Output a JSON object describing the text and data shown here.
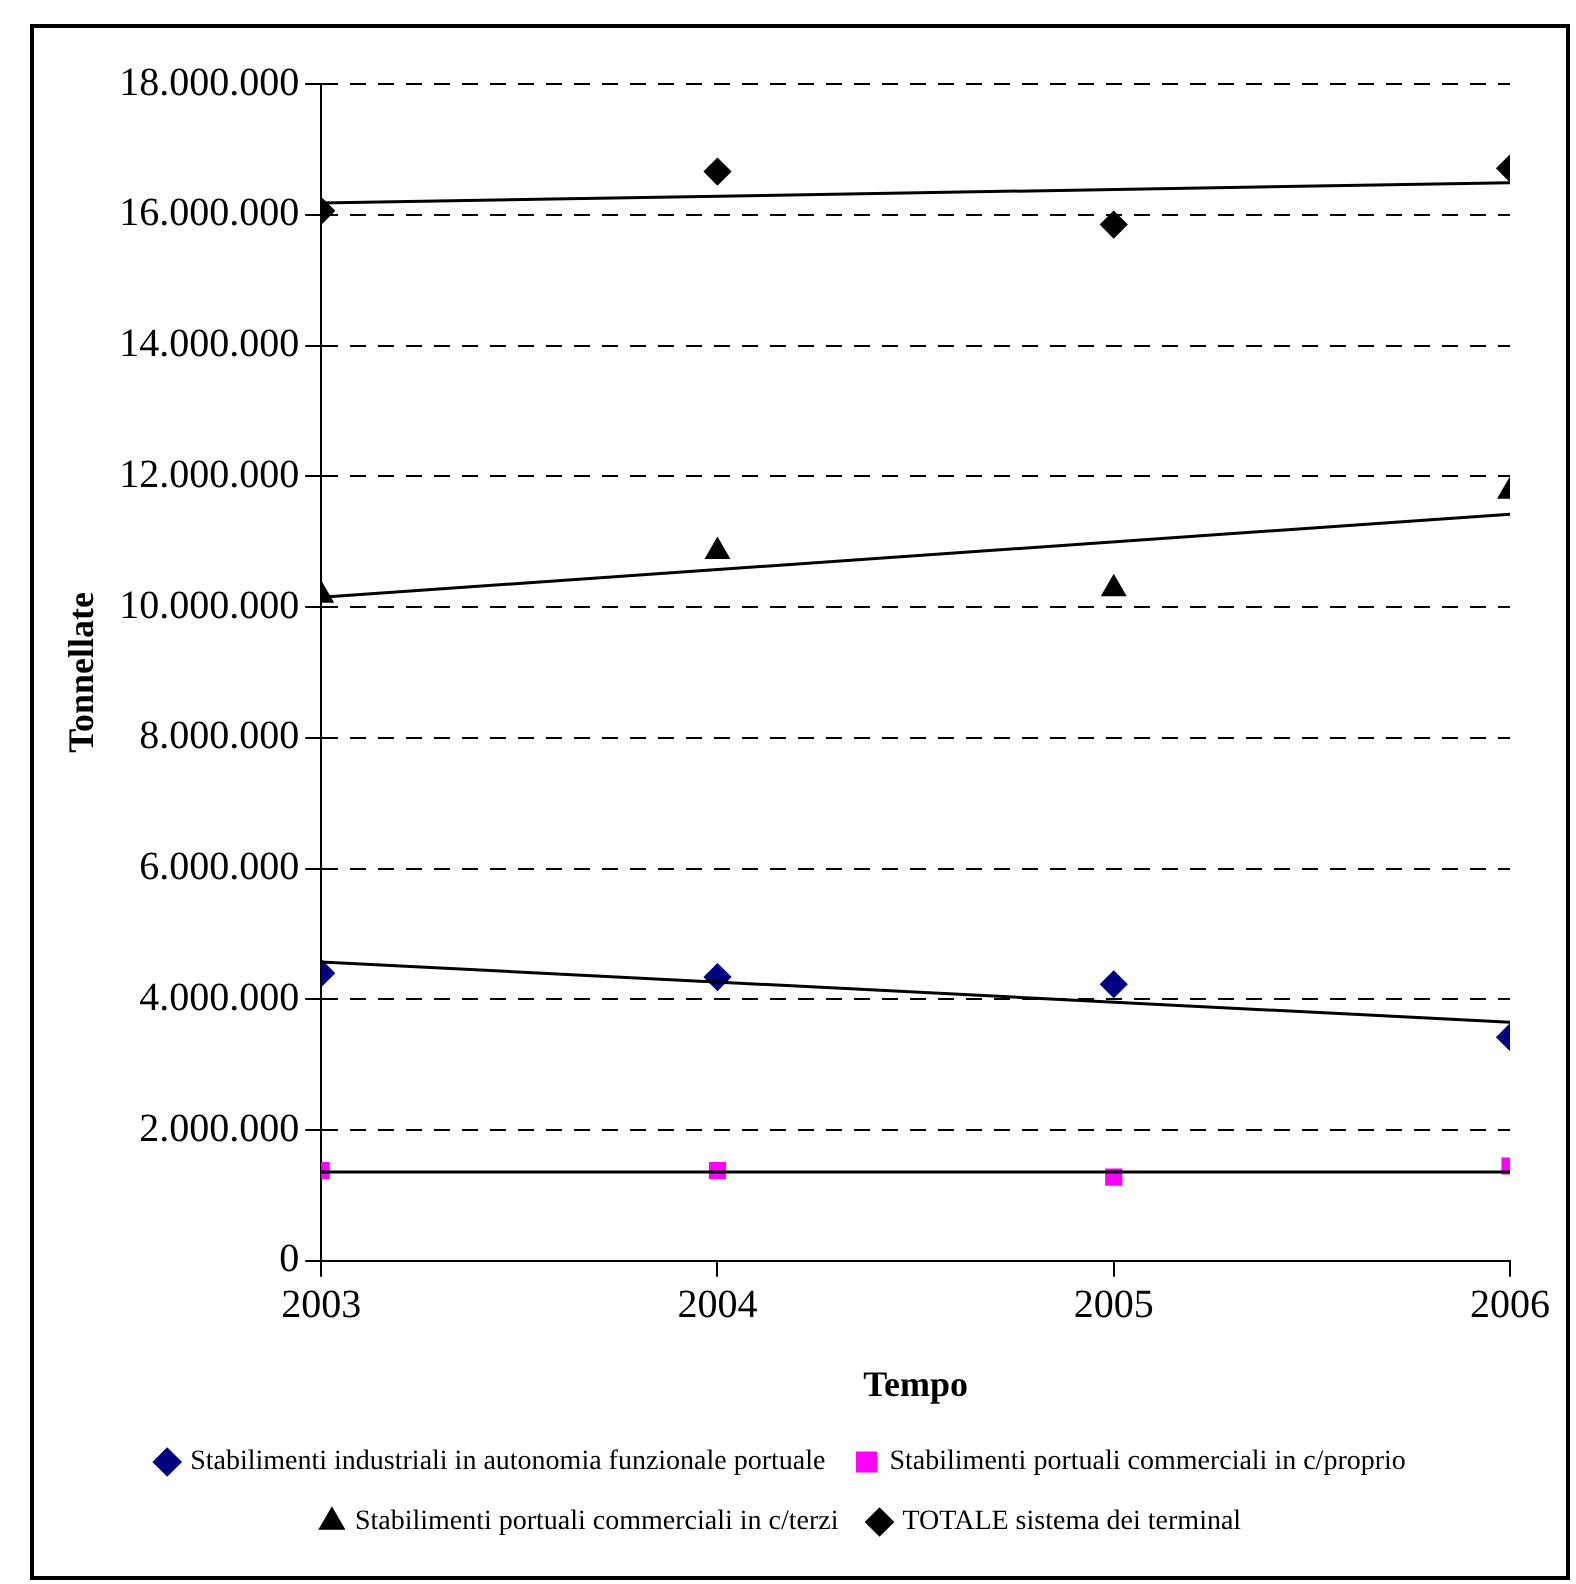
{
  "chart_data": {
    "type": "scatter",
    "xlabel": "Tempo",
    "ylabel": "Tonnellate",
    "xlim": [
      2003,
      2006
    ],
    "xticks": [
      2003,
      2004,
      2005,
      2006
    ],
    "ylim": [
      0,
      18000000
    ],
    "yticks": [
      0,
      {
        "value": 2000000,
        "label": "2.000.000"
      },
      {
        "value": 4000000,
        "label": "4.000.000"
      },
      {
        "value": 6000000,
        "label": "6.000.000"
      },
      {
        "value": 8000000,
        "label": "8.000.000"
      },
      {
        "value": 10000000,
        "label": "10.000.000"
      },
      {
        "value": 12000000,
        "label": "12.000.000"
      },
      {
        "value": 14000000,
        "label": "14.000.000"
      },
      {
        "value": 16000000,
        "label": "16.000.000"
      },
      {
        "value": 18000000,
        "label": "18.000.000"
      }
    ],
    "grid": "y",
    "legend": "bottom",
    "series": [
      {
        "type": "scatter",
        "name": "Stabilimenti industriali in autonomia funzionale portuale",
        "color": "#000080",
        "marker": "diamond",
        "x": [
          2003,
          2004,
          2005,
          2006
        ],
        "values": [
          4400000,
          4340000,
          4230000,
          3420000
        ]
      },
      {
        "type": "scatter",
        "name": "Stabilimenti portuali commerciali in c/proprio",
        "color": "#ff00ff",
        "marker": "square",
        "x": [
          2003,
          2004,
          2005,
          2006
        ],
        "values": [
          1380000,
          1380000,
          1280000,
          1450000
        ]
      },
      {
        "type": "scatter",
        "name": "Stabilimenti portuali commerciali in c/terzi",
        "color": "#000000",
        "marker": "triangle",
        "x": [
          2003,
          2004,
          2005,
          2006
        ],
        "values": [
          10180000,
          10850000,
          10280000,
          11770000
        ]
      },
      {
        "type": "scatter",
        "name": "TOTALE sistema dei terminal",
        "color": "#000000",
        "marker": "diamond",
        "x": [
          2003,
          2004,
          2005,
          2006
        ],
        "values": [
          16060000,
          16660000,
          15850000,
          16710000
        ]
      },
      {
        "type": "line",
        "color": "#000000",
        "marker": "none",
        "x": [
          2003,
          2006
        ],
        "values": [
          4570000,
          3650000
        ]
      },
      {
        "type": "line",
        "color": "#000000",
        "marker": "none",
        "x": [
          2003,
          2006
        ],
        "values": [
          1360000,
          1360000
        ]
      },
      {
        "type": "line",
        "color": "#000000",
        "marker": "none",
        "x": [
          2003,
          2006
        ],
        "values": [
          10150000,
          11420000
        ]
      },
      {
        "type": "line",
        "color": "#000000",
        "marker": "none",
        "x": [
          2003,
          2006
        ],
        "values": [
          16180000,
          16490000
        ]
      }
    ]
  }
}
